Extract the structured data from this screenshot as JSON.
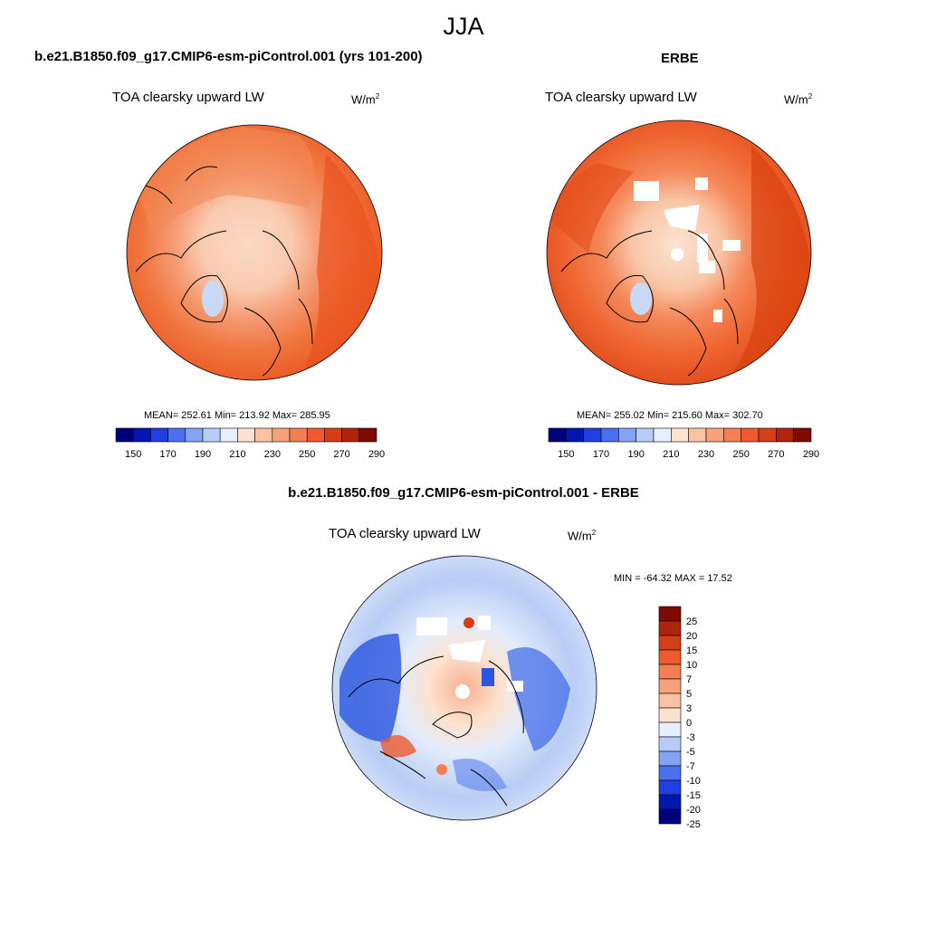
{
  "figure_title": "JJA",
  "panels": {
    "model": {
      "heading": "b.e21.B1850.f09_g17.CMIP6-esm-piControl.001 (yrs 101-200)",
      "variable": "TOA clearsky upward LW",
      "units_base": "W/m",
      "units_exp": "2",
      "stats": "MEAN= 252.61  Min= 213.92  Max= 285.95"
    },
    "obs": {
      "heading": "ERBE",
      "variable": "TOA clearsky upward LW",
      "units_base": "W/m",
      "units_exp": "2",
      "stats": "MEAN= 255.02  Min= 215.60  Max= 302.70"
    },
    "diff": {
      "heading": "b.e21.B1850.f09_g17.CMIP6-esm-piControl.001 - ERBE",
      "variable": "TOA clearsky upward LW",
      "units_base": "W/m",
      "units_exp": "2",
      "stats": "MIN = -64.32 MAX =  17.52"
    }
  },
  "colorbars": {
    "absolute": {
      "labels": [
        "150",
        "170",
        "190",
        "210",
        "230",
        "250",
        "270",
        "290"
      ],
      "colors": [
        "#00007f",
        "#0018b0",
        "#1f3fe0",
        "#4a6ff0",
        "#84a4f2",
        "#b7ccf7",
        "#e6efff",
        "#fde2cf",
        "#f9c2a3",
        "#f7a27b",
        "#f47f55",
        "#ee5a2e",
        "#d43f18",
        "#b0240b",
        "#7f0a04"
      ]
    },
    "difference": {
      "labels": [
        "25",
        "20",
        "15",
        "10",
        "7",
        "5",
        "3",
        "0",
        "-3",
        "-5",
        "-7",
        "-10",
        "-15",
        "-20",
        "-25"
      ],
      "colors": [
        "#7f0a04",
        "#b0240b",
        "#d43f18",
        "#ee5a2e",
        "#f47f55",
        "#f7a27b",
        "#f9c2a3",
        "#fde2cf",
        "#e6efff",
        "#b7ccf7",
        "#84a4f2",
        "#4a6ff0",
        "#1f3fe0",
        "#0018b0",
        "#00007f"
      ]
    }
  }
}
